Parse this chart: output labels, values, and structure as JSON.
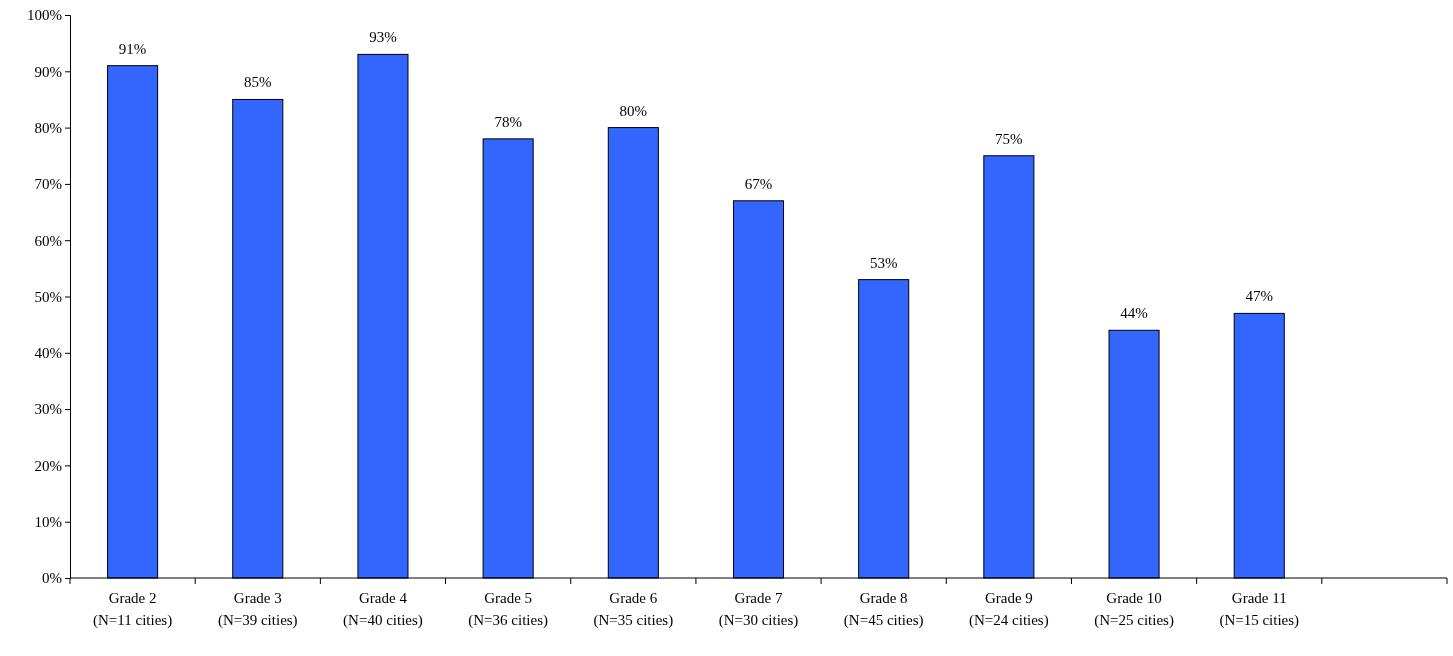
{
  "chart_data": {
    "type": "bar",
    "categories": [
      "Grade 2\n(N=11 cities)",
      "Grade 3\n(N=39 cities)",
      "Grade 4\n(N=40 cities)",
      "Grade 5\n(N=36 cities)",
      "Grade 6\n(N=35 cities)",
      "Grade 7\n(N=30 cities)",
      "Grade 8\n(N=45 cities)",
      "Grade 9\n(N=24 cities)",
      "Grade 10\n(N=25 cities)",
      "Grade 11\n(N=15 cities)",
      null
    ],
    "values": [
      91,
      85,
      93,
      78,
      80,
      67,
      53,
      75,
      44,
      47,
      null
    ],
    "value_labels": [
      "91%",
      "85%",
      "93%",
      "78%",
      "80%",
      "67%",
      "53%",
      "75%",
      "44%",
      "47%",
      null
    ],
    "color": "#3366ff",
    "ylim": [
      0,
      100
    ],
    "yticks": [
      {
        "value": 0,
        "label": "0%"
      },
      {
        "value": 10,
        "label": "10%"
      },
      {
        "value": 20,
        "label": "20%"
      },
      {
        "value": 30,
        "label": "30%"
      },
      {
        "value": 40,
        "label": "40%"
      },
      {
        "value": 50,
        "label": "50%"
      },
      {
        "value": 60,
        "label": "60%"
      },
      {
        "value": 70,
        "label": "70%"
      },
      {
        "value": 80,
        "label": "80%"
      },
      {
        "value": 90,
        "label": "90%"
      },
      {
        "value": 100,
        "label": "100%"
      }
    ],
    "grid": false
  }
}
